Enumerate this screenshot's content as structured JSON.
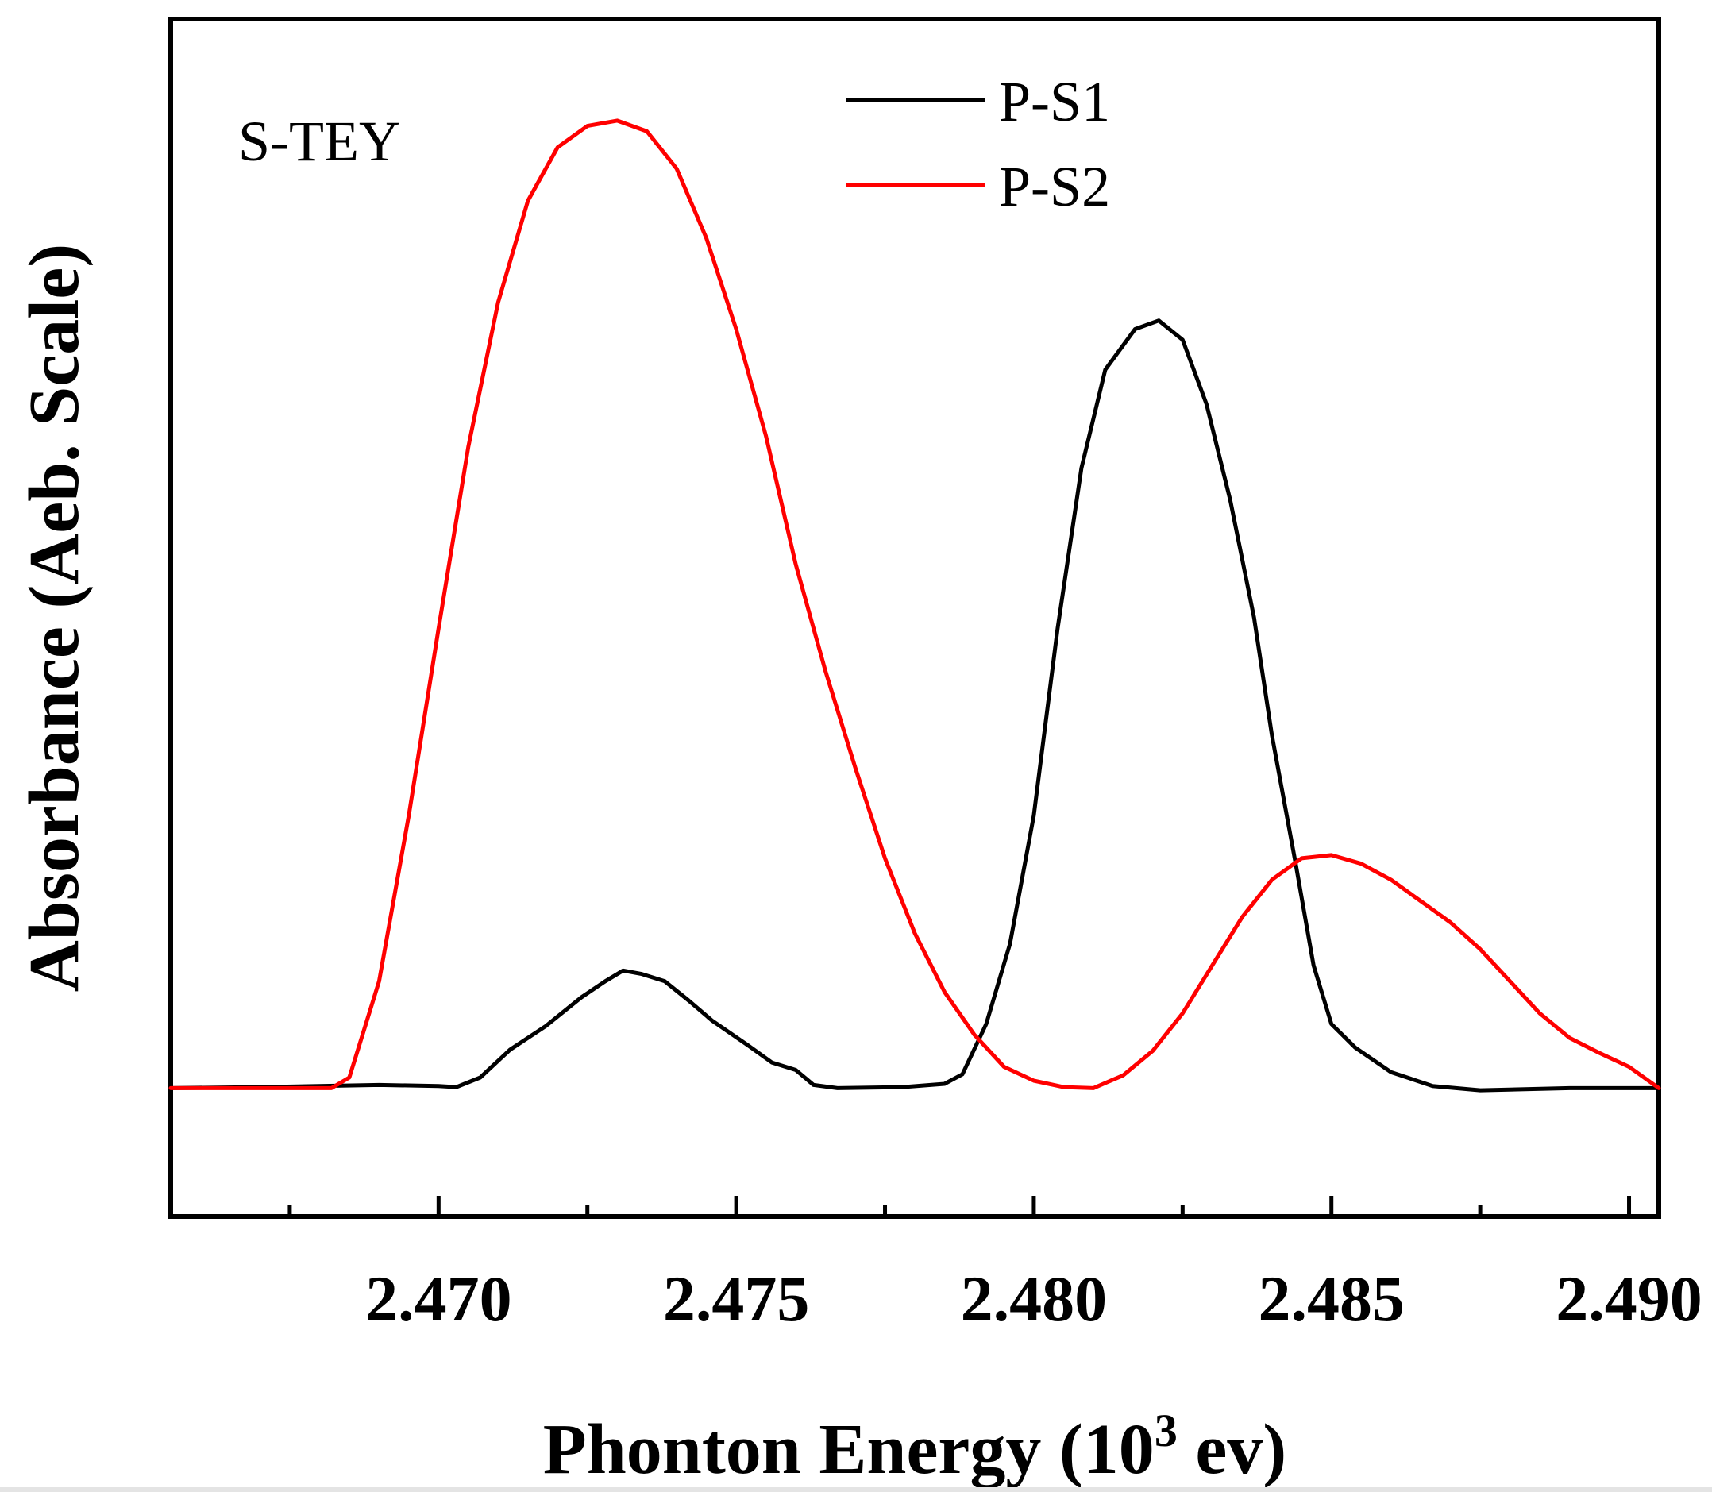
{
  "chart_data": {
    "type": "line",
    "title": "",
    "xlabel_main": "Phonton Energy (10",
    "xlabel_sup": "3",
    "xlabel_tail": " ev)",
    "ylabel": "Absorbance (Aeb. Scale)",
    "annotation": "S-TEY",
    "xlim": [
      2.4655,
      2.4905
    ],
    "ylim": [
      -0.12,
      1.0
    ],
    "xticks": [
      2.47,
      2.475,
      2.48,
      2.485,
      2.49
    ],
    "xtick_labels": [
      "2.470",
      "2.475",
      "2.480",
      "2.485",
      "2.490"
    ],
    "minor_xticks": [
      2.4675,
      2.4725,
      2.4775,
      2.4825,
      2.4875
    ],
    "yticks_shown": false,
    "legend_position": "top-center",
    "series": [
      {
        "name": "P-S1",
        "color": "#000000",
        "points": [
          [
            2.4655,
            0.0
          ],
          [
            2.467,
            0.001
          ],
          [
            2.469,
            0.003
          ],
          [
            2.47,
            0.002
          ],
          [
            2.4703,
            0.001
          ],
          [
            2.4707,
            0.01
          ],
          [
            2.4712,
            0.036
          ],
          [
            2.4718,
            0.058
          ],
          [
            2.4724,
            0.085
          ],
          [
            2.4728,
            0.1
          ],
          [
            2.4731,
            0.11
          ],
          [
            2.4734,
            0.107
          ],
          [
            2.4738,
            0.1
          ],
          [
            2.4742,
            0.082
          ],
          [
            2.4746,
            0.063
          ],
          [
            2.4752,
            0.04
          ],
          [
            2.4756,
            0.024
          ],
          [
            2.476,
            0.017
          ],
          [
            2.4763,
            0.003
          ],
          [
            2.4767,
            0.0
          ],
          [
            2.4778,
            0.001
          ],
          [
            2.4785,
            0.004
          ],
          [
            2.4788,
            0.013
          ],
          [
            2.4792,
            0.06
          ],
          [
            2.4796,
            0.135
          ],
          [
            2.48,
            0.255
          ],
          [
            2.4804,
            0.43
          ],
          [
            2.4808,
            0.58
          ],
          [
            2.4812,
            0.672
          ],
          [
            2.4817,
            0.71
          ],
          [
            2.4821,
            0.718
          ],
          [
            2.4825,
            0.7
          ],
          [
            2.4829,
            0.64
          ],
          [
            2.4833,
            0.55
          ],
          [
            2.4837,
            0.44
          ],
          [
            2.484,
            0.33
          ],
          [
            2.4844,
            0.21
          ],
          [
            2.4847,
            0.115
          ],
          [
            2.485,
            0.06
          ],
          [
            2.4854,
            0.038
          ],
          [
            2.486,
            0.015
          ],
          [
            2.4867,
            0.002
          ],
          [
            2.4875,
            -0.002
          ],
          [
            2.489,
            0.0
          ],
          [
            2.4905,
            0.0
          ]
        ]
      },
      {
        "name": "P-S2",
        "color": "#ff0000",
        "points": [
          [
            2.4655,
            0.0
          ],
          [
            2.467,
            0.0
          ],
          [
            2.4682,
            0.0
          ],
          [
            2.4685,
            0.01
          ],
          [
            2.469,
            0.1
          ],
          [
            2.4695,
            0.255
          ],
          [
            2.47,
            0.43
          ],
          [
            2.4705,
            0.6
          ],
          [
            2.471,
            0.735
          ],
          [
            2.4715,
            0.83
          ],
          [
            2.472,
            0.88
          ],
          [
            2.4725,
            0.9
          ],
          [
            2.473,
            0.905
          ],
          [
            2.4735,
            0.895
          ],
          [
            2.474,
            0.86
          ],
          [
            2.4745,
            0.795
          ],
          [
            2.475,
            0.71
          ],
          [
            2.4755,
            0.61
          ],
          [
            2.476,
            0.49
          ],
          [
            2.4765,
            0.39
          ],
          [
            2.477,
            0.3
          ],
          [
            2.4775,
            0.215
          ],
          [
            2.478,
            0.145
          ],
          [
            2.4785,
            0.09
          ],
          [
            2.479,
            0.05
          ],
          [
            2.4795,
            0.02
          ],
          [
            2.48,
            0.007
          ],
          [
            2.4805,
            0.001
          ],
          [
            2.481,
            0.0
          ],
          [
            2.4815,
            0.012
          ],
          [
            2.482,
            0.035
          ],
          [
            2.4825,
            0.07
          ],
          [
            2.483,
            0.115
          ],
          [
            2.4835,
            0.16
          ],
          [
            2.484,
            0.195
          ],
          [
            2.4845,
            0.215
          ],
          [
            2.485,
            0.218
          ],
          [
            2.4855,
            0.21
          ],
          [
            2.486,
            0.195
          ],
          [
            2.4865,
            0.175
          ],
          [
            2.487,
            0.155
          ],
          [
            2.4875,
            0.13
          ],
          [
            2.488,
            0.1
          ],
          [
            2.4885,
            0.07
          ],
          [
            2.489,
            0.047
          ],
          [
            2.4895,
            0.033
          ],
          [
            2.49,
            0.02
          ],
          [
            2.4905,
            0.0
          ]
        ]
      }
    ]
  }
}
